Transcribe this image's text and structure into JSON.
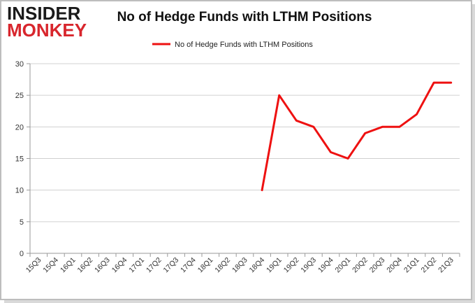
{
  "logo": {
    "line1": "INSIDER",
    "line2": "MONKEY"
  },
  "chart_data": {
    "type": "line",
    "title": "No of Hedge Funds with LTHM Positions",
    "legend": "top-center",
    "grid": true,
    "ylim": [
      0,
      30
    ],
    "yticks": [
      0,
      5,
      10,
      15,
      20,
      25,
      30
    ],
    "categories": [
      "15Q3",
      "15Q4",
      "16Q1",
      "16Q2",
      "16Q3",
      "16Q4",
      "17Q1",
      "17Q2",
      "17Q3",
      "17Q4",
      "18Q1",
      "18Q2",
      "18Q3",
      "18Q4",
      "19Q1",
      "19Q2",
      "19Q3",
      "19Q4",
      "20Q1",
      "20Q2",
      "20Q3",
      "20Q4",
      "21Q1",
      "21Q2",
      "21Q3"
    ],
    "series": [
      {
        "name": "No of Hedge Funds with LTHM Positions",
        "color": "#ee1111",
        "values": [
          null,
          null,
          null,
          null,
          null,
          null,
          null,
          null,
          null,
          null,
          null,
          null,
          null,
          10,
          25,
          21,
          20,
          16,
          15,
          19,
          20,
          20,
          22,
          27,
          27
        ]
      }
    ]
  }
}
